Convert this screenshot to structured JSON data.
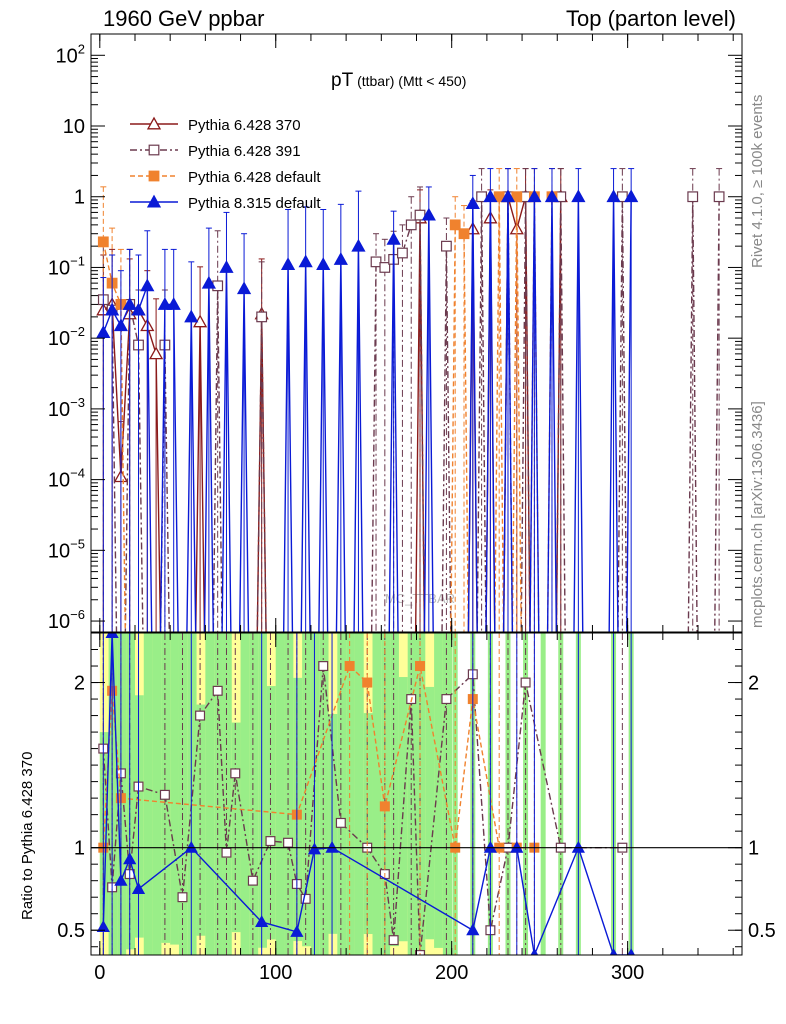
{
  "header": {
    "left": "1960 GeV ppbar",
    "right": "Top (parton level)"
  },
  "side_labels": {
    "rivet": "Rivet 4.1.0, ≥ 100k events",
    "mcplots": "mcplots.cern.ch [arXiv:1306.3436]"
  },
  "watermark": "MC_TTBAR",
  "ratio_ylabel": "Ratio to Pythia 6.428 370",
  "chart_data": [
    {
      "type": "scatter",
      "title_main": "pT",
      "title_sub": " (ttbar) (Mtt < 450)",
      "yscale": "log",
      "xlim": [
        -5,
        365
      ],
      "ylim": [
        7e-07,
        200
      ],
      "y_ticks": [
        {
          "value": 100,
          "base": "10",
          "exp": "2"
        },
        {
          "value": 10,
          "base": "10",
          "exp": ""
        },
        {
          "value": 1,
          "base": "1",
          "exp": ""
        },
        {
          "value": 0.1,
          "base": "10",
          "exp": "−1"
        },
        {
          "value": 0.01,
          "base": "10",
          "exp": "−2"
        },
        {
          "value": 0.001,
          "base": "10",
          "exp": "−3"
        },
        {
          "value": 0.0001,
          "base": "10",
          "exp": "−4"
        },
        {
          "value": 1e-05,
          "base": "10",
          "exp": "−5"
        },
        {
          "value": 1e-06,
          "base": "10",
          "exp": "−6"
        }
      ],
      "legend_position": "top-left",
      "series": [
        {
          "name": "Pythia 6.428 370",
          "color": "#8b1a1a",
          "marker": "triangle-open",
          "dash": "",
          "x": [
            2,
            7,
            12,
            17,
            22,
            27,
            32,
            57,
            92,
            182,
            212,
            222,
            232,
            237,
            242,
            262
          ],
          "y": [
            0.025,
            0.03,
            0.00011,
            0.022,
            0.025,
            0.015,
            0.006,
            0.017,
            0.022,
            0.5,
            0.35,
            0.5,
            1,
            0.35,
            1,
            1
          ]
        },
        {
          "name": "Pythia 6.428 391",
          "color": "#6b3a4e",
          "marker": "square-open",
          "dash": "7,3,2,3",
          "x": [
            2,
            7,
            17,
            22,
            37,
            67,
            92,
            157,
            162,
            167,
            172,
            177,
            182,
            197,
            217,
            232,
            242,
            262,
            297,
            337,
            352
          ],
          "y": [
            0.035,
            0.025,
            0.03,
            0.008,
            0.008,
            0.055,
            0.02,
            0.12,
            0.1,
            0.13,
            0.16,
            0.4,
            0.55,
            0.2,
            1,
            1,
            1,
            1,
            1,
            1,
            1
          ]
        },
        {
          "name": "Pythia 6.428 default",
          "color": "#f0822e",
          "marker": "square-filled",
          "dash": "5,3",
          "x": [
            2,
            7,
            12,
            202,
            207,
            227,
            237,
            247,
            257
          ],
          "y": [
            0.23,
            0.06,
            0.03,
            0.4,
            0.3,
            1,
            1,
            1,
            1
          ]
        },
        {
          "name": "Pythia 8.315 default",
          "color": "#0a1ad6",
          "marker": "triangle-filled",
          "dash": "",
          "x": [
            2,
            7,
            12,
            17,
            22,
            27,
            37,
            42,
            52,
            62,
            72,
            82,
            107,
            117,
            127,
            137,
            147,
            167,
            187,
            212,
            222,
            232,
            247,
            257,
            272,
            292,
            302
          ],
          "y": [
            0.012,
            0.025,
            0.015,
            0.03,
            0.025,
            0.055,
            0.03,
            0.03,
            0.02,
            0.06,
            0.1,
            0.05,
            0.11,
            0.12,
            0.11,
            0.13,
            0.2,
            0.25,
            0.55,
            0.8,
            1,
            1,
            1,
            1,
            1,
            1,
            1
          ]
        }
      ]
    },
    {
      "type": "scatter",
      "ylabel": "Ratio to Pythia 6.428 370",
      "xlim": [
        -5,
        365
      ],
      "ylim": [
        0.35,
        2.3
      ],
      "y_ticks": [
        0.5,
        1,
        2
      ],
      "y_tick_labels": [
        "0.5",
        "1",
        "2"
      ],
      "x_ticks": [
        0,
        100,
        200,
        300
      ],
      "x_tick_labels": [
        "0",
        "100",
        "200",
        "300"
      ],
      "reference_line": 1,
      "series": [
        {
          "name": "Pythia 6.428 391",
          "x": [
            2,
            7,
            12,
            17,
            22,
            37,
            47,
            57,
            67,
            72,
            77,
            87,
            97,
            107,
            112,
            117,
            127,
            137,
            152,
            162,
            167,
            177,
            182,
            197,
            212,
            222,
            232,
            242,
            262,
            297
          ],
          "y": [
            1.6,
            0.76,
            1.45,
            0.84,
            1.37,
            1.32,
            0.7,
            1.8,
            1.95,
            0.97,
            1.45,
            0.8,
            1.04,
            1.03,
            0.78,
            0.69,
            2.1,
            1.15,
            1.0,
            0.84,
            0.44,
            1.9,
            0.35,
            1.9,
            2.05,
            0.5,
            1.0,
            2.0,
            1.0,
            1.0
          ]
        },
        {
          "name": "Pythia 6.428 default",
          "x": [
            2,
            7,
            12,
            112,
            142,
            152,
            162,
            182,
            202,
            212,
            227,
            237,
            247
          ],
          "y": [
            1.0,
            1.95,
            1.3,
            1.2,
            2.1,
            2.0,
            1.25,
            2.1,
            1.0,
            1.9,
            1.0,
            1.0,
            1.0
          ]
        },
        {
          "name": "Pythia 8.315 default",
          "x": [
            2,
            7,
            12,
            17,
            22,
            52,
            92,
            112,
            122,
            132,
            212,
            222,
            237,
            247,
            272,
            292,
            302
          ],
          "y": [
            0.52,
            2.3,
            0.8,
            0.93,
            0.75,
            1.0,
            0.55,
            0.49,
            0.99,
            1.0,
            0.5,
            1.0,
            1.0,
            0.35,
            1.0,
            0.35,
            0.35
          ]
        }
      ]
    }
  ]
}
